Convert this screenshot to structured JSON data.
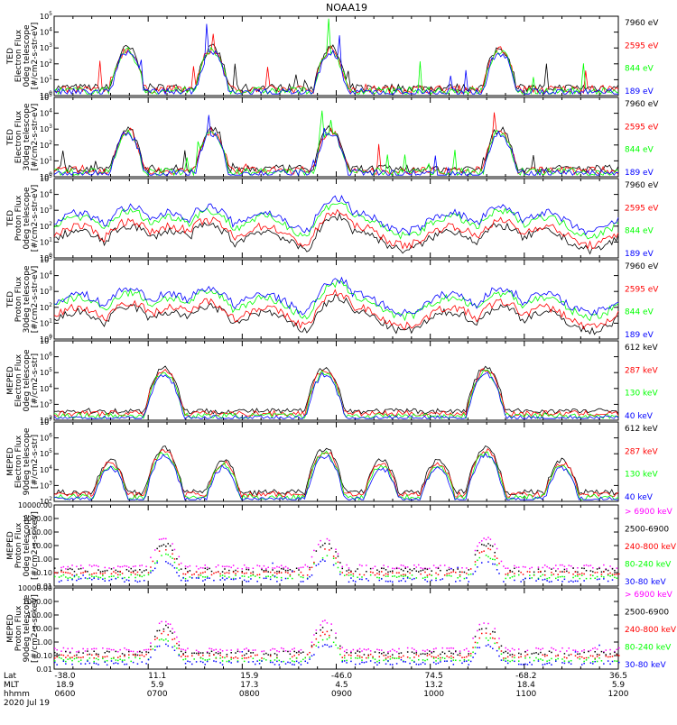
{
  "title": "NOAA19",
  "date_label": "2020 Jul 19",
  "footer": {
    "row_labels": [
      "Lat",
      "MLT",
      "hhmm"
    ],
    "x_ticks": [
      {
        "lat": "-38.0",
        "mlt": "18.9",
        "hhmm": "0600"
      },
      {
        "lat": "11.1",
        "mlt": "5.9",
        "hhmm": "0700"
      },
      {
        "lat": "15.9",
        "mlt": "17.3",
        "hhmm": "0800"
      },
      {
        "lat": "-46.0",
        "mlt": "4.5",
        "hhmm": "0900"
      },
      {
        "lat": "74.5",
        "mlt": "13.2",
        "hhmm": "1000"
      },
      {
        "lat": "-68.2",
        "mlt": "18.4",
        "hhmm": "1100"
      },
      {
        "lat": "36.5",
        "mlt": "5.9",
        "hhmm": "1200"
      }
    ]
  },
  "colors": {
    "black": "#000000",
    "red": "#ff0000",
    "green": "#00ff00",
    "blue": "#0000ff",
    "magenta": "#ff00ff"
  },
  "chart_data": [
    {
      "type": "line",
      "ylabel": "TED\nElectron Flux\n0deg telescope\n[#/cm2-s-str-eV]",
      "ylim": [
        1,
        100000
      ],
      "yscale": "log",
      "yticks": [
        "10^0",
        "10^1",
        "10^2",
        "10^3",
        "10^4",
        "10^5"
      ],
      "tick_style": "power",
      "x": [
        "0600",
        "0700",
        "0800",
        "0900",
        "1000",
        "1100",
        "1200"
      ],
      "series": [
        {
          "name": "7960 eV",
          "color": "#000000"
        },
        {
          "name": "2595 eV",
          "color": "#ff0000"
        },
        {
          "name": "844 eV",
          "color": "#00ff00"
        },
        {
          "name": "189 eV",
          "color": "#0000ff"
        }
      ]
    },
    {
      "type": "line",
      "ylabel": "TED\nElectron Flux\n30deg telescope\n[#/cm2-s-str-eV]",
      "ylim": [
        1,
        100000
      ],
      "yscale": "log",
      "yticks": [
        "10^0",
        "10^1",
        "10^2",
        "10^3",
        "10^4",
        "10^5"
      ],
      "tick_style": "power",
      "x": [
        "0600",
        "0700",
        "0800",
        "0900",
        "1000",
        "1100",
        "1200"
      ],
      "series": [
        {
          "name": "7960 eV",
          "color": "#000000"
        },
        {
          "name": "2595 eV",
          "color": "#ff0000"
        },
        {
          "name": "844 eV",
          "color": "#00ff00"
        },
        {
          "name": "189 eV",
          "color": "#0000ff"
        }
      ]
    },
    {
      "type": "line",
      "ylabel": "TED\nProton Flux\n0deg telescope\n[#/cm2-s-str-eV]",
      "ylim": [
        1,
        100000
      ],
      "yscale": "log",
      "yticks": [
        "10^0",
        "10^1",
        "10^2",
        "10^3",
        "10^4",
        "10^5"
      ],
      "tick_style": "power",
      "x": [
        "0600",
        "0700",
        "0800",
        "0900",
        "1000",
        "1100",
        "1200"
      ],
      "series": [
        {
          "name": "7960 eV",
          "color": "#000000"
        },
        {
          "name": "2595 eV",
          "color": "#ff0000"
        },
        {
          "name": "844 eV",
          "color": "#00ff00"
        },
        {
          "name": "189 eV",
          "color": "#0000ff"
        }
      ]
    },
    {
      "type": "line",
      "ylabel": "TED\nProton Flux\n30deg telescope\n[#/cm2-s-str-eV]",
      "ylim": [
        1,
        100000
      ],
      "yscale": "log",
      "yticks": [
        "10^0",
        "10^1",
        "10^2",
        "10^3",
        "10^4",
        "10^5"
      ],
      "tick_style": "power",
      "x": [
        "0600",
        "0700",
        "0800",
        "0900",
        "1000",
        "1100",
        "1200"
      ],
      "series": [
        {
          "name": "7960 eV",
          "color": "#000000"
        },
        {
          "name": "2595 eV",
          "color": "#ff0000"
        },
        {
          "name": "844 eV",
          "color": "#00ff00"
        },
        {
          "name": "189 eV",
          "color": "#0000ff"
        }
      ]
    },
    {
      "type": "line",
      "ylabel": "MEPED\nElectron Flux\n0deg telescope\n[#/cm2-s-str]",
      "ylim": [
        100,
        10000000
      ],
      "yscale": "log",
      "yticks": [
        "10^2",
        "10^3",
        "10^4",
        "10^5",
        "10^6",
        "10^7"
      ],
      "tick_style": "power",
      "x": [
        "0600",
        "0700",
        "0800",
        "0900",
        "1000",
        "1100",
        "1200"
      ],
      "series": [
        {
          "name": "612 keV",
          "color": "#000000"
        },
        {
          "name": "287 keV",
          "color": "#ff0000"
        },
        {
          "name": "130 keV",
          "color": "#00ff00"
        },
        {
          "name": "40 keV",
          "color": "#0000ff"
        }
      ]
    },
    {
      "type": "line",
      "ylabel": "MEPED\nElectron Flux\n90deg telescope\n[#/cm2-s-str]",
      "ylim": [
        100,
        10000000
      ],
      "yscale": "log",
      "yticks": [
        "10^2",
        "10^3",
        "10^4",
        "10^5",
        "10^6",
        "10^7"
      ],
      "tick_style": "power",
      "x": [
        "0600",
        "0700",
        "0800",
        "0900",
        "1000",
        "1100",
        "1200"
      ],
      "series": [
        {
          "name": "612 keV",
          "color": "#000000"
        },
        {
          "name": "287 keV",
          "color": "#ff0000"
        },
        {
          "name": "130 keV",
          "color": "#00ff00"
        },
        {
          "name": "40 keV",
          "color": "#0000ff"
        }
      ]
    },
    {
      "type": "scatter",
      "ylabel": "MEPED\nProton Flux\n0deg telescope\n[#/cm2-s-sr-keV]",
      "ylim": [
        0.01,
        10000
      ],
      "yscale": "log",
      "yticks": [
        "0.01",
        "0.10",
        "1.00",
        "10.00",
        "100.00",
        "1000.00",
        "10000.00"
      ],
      "tick_style": "decimal",
      "x": [
        "0600",
        "0700",
        "0800",
        "0900",
        "1000",
        "1100",
        "1200"
      ],
      "series": [
        {
          "name": "> 6900 keV",
          "color": "#ff00ff"
        },
        {
          "name": "2500-6900",
          "color": "#000000"
        },
        {
          "name": "240-800 keV",
          "color": "#ff0000"
        },
        {
          "name": "80-240 keV",
          "color": "#00ff00"
        },
        {
          "name": "30-80 keV",
          "color": "#0000ff"
        }
      ]
    },
    {
      "type": "scatter",
      "ylabel": "MEPED\nProton Flux\n90deg telescope\n[#/cm2-s-sr-keV]",
      "ylim": [
        0.01,
        10000
      ],
      "yscale": "log",
      "yticks": [
        "0.01",
        "0.10",
        "1.00",
        "10.00",
        "100.00",
        "1000.00",
        "10000.00"
      ],
      "tick_style": "decimal",
      "x": [
        "0600",
        "0700",
        "0800",
        "0900",
        "1000",
        "1100",
        "1200"
      ],
      "series": [
        {
          "name": "> 6900 keV",
          "color": "#ff00ff"
        },
        {
          "name": "2500-6900",
          "color": "#000000"
        },
        {
          "name": "240-800 keV",
          "color": "#ff0000"
        },
        {
          "name": "80-240 keV",
          "color": "#00ff00"
        },
        {
          "name": "30-80 keV",
          "color": "#0000ff"
        }
      ]
    }
  ]
}
